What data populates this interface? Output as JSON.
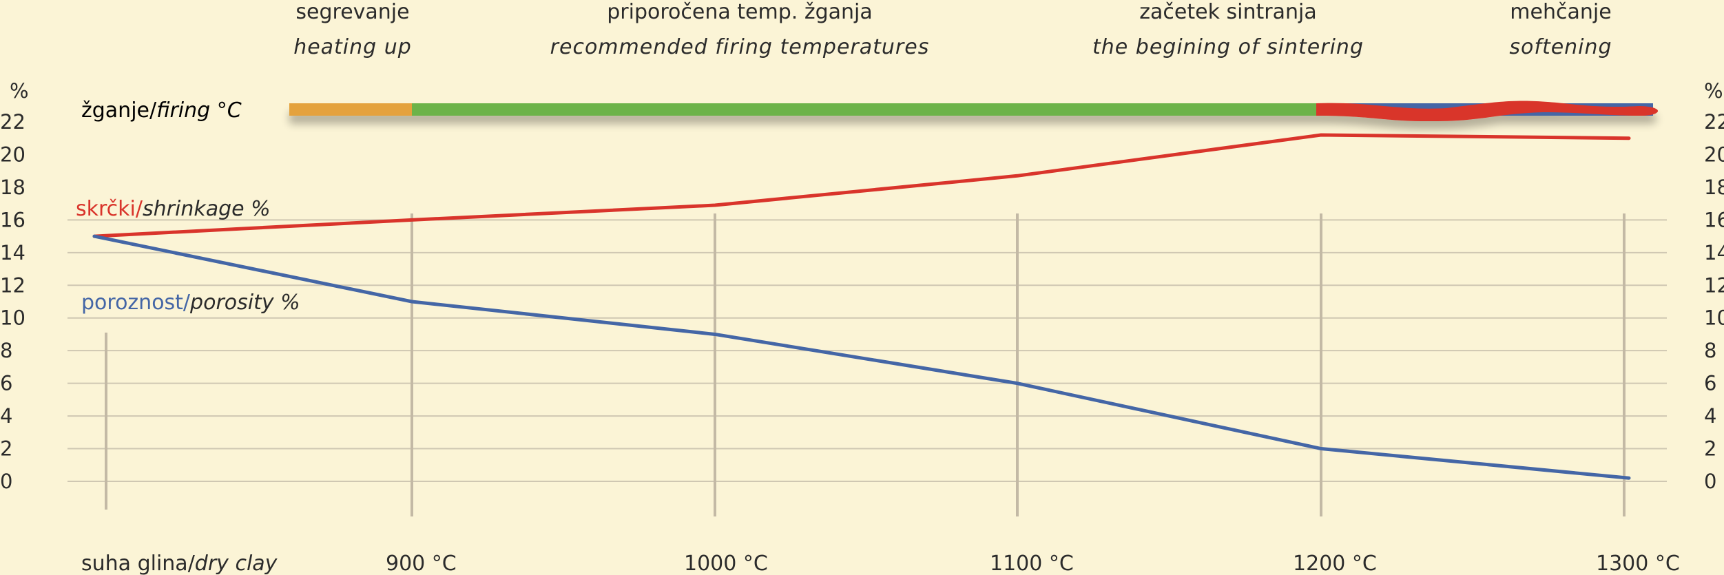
{
  "chart_data": {
    "type": "line",
    "x_categories": [
      "suha glina/dry clay",
      "900 °C",
      "1000 °C",
      "1100 °C",
      "1200 °C",
      "1300 °C"
    ],
    "x_labels": [
      {
        "main": "suha glina/",
        "italic": "dry clay"
      },
      {
        "main": "900 °C",
        "italic": ""
      },
      {
        "main": "1000 °C",
        "italic": ""
      },
      {
        "main": "1100 °C",
        "italic": ""
      },
      {
        "main": "1200 °C",
        "italic": ""
      },
      {
        "main": "1300 °C",
        "italic": ""
      }
    ],
    "y_unit": "%",
    "y_ticks": [
      22,
      20,
      18,
      16,
      14,
      12,
      10,
      8,
      6,
      4,
      2,
      0
    ],
    "ylim": [
      0,
      22
    ],
    "series": [
      {
        "name": "skrčki/shrinkage %",
        "name_main": "skrčki/",
        "name_italic": "shrinkage %",
        "color": "#d9342b",
        "values": [
          15,
          16,
          16.9,
          18.7,
          21.2,
          21
        ]
      },
      {
        "name": "poroznost/porosity %",
        "name_main": "poroznost/",
        "name_italic": "porosity %",
        "color": "#4466a6",
        "values": [
          15,
          11,
          9,
          6,
          2,
          0.2
        ]
      }
    ],
    "firing_bar": {
      "label_main": "žganje/",
      "label_italic": "firing °C",
      "segments": [
        {
          "from": 0,
          "to": 1,
          "color": "#e4a23c"
        },
        {
          "from": 1,
          "to": 3,
          "color": "#6cb34a"
        },
        {
          "from": 3,
          "to": 4,
          "color": "#4466a6"
        },
        {
          "from": 4,
          "to": 5,
          "color": "#d9342b"
        }
      ]
    },
    "phases": [
      {
        "main": "segrevanje",
        "en": "heating up"
      },
      {
        "main": "priporočena temp. žganja",
        "en": "recommended firing temperatures"
      },
      {
        "main": "začetek sintranja",
        "en": "the begining of sintering"
      },
      {
        "main": "mehčanje",
        "en": "softening"
      }
    ],
    "grid": true
  }
}
